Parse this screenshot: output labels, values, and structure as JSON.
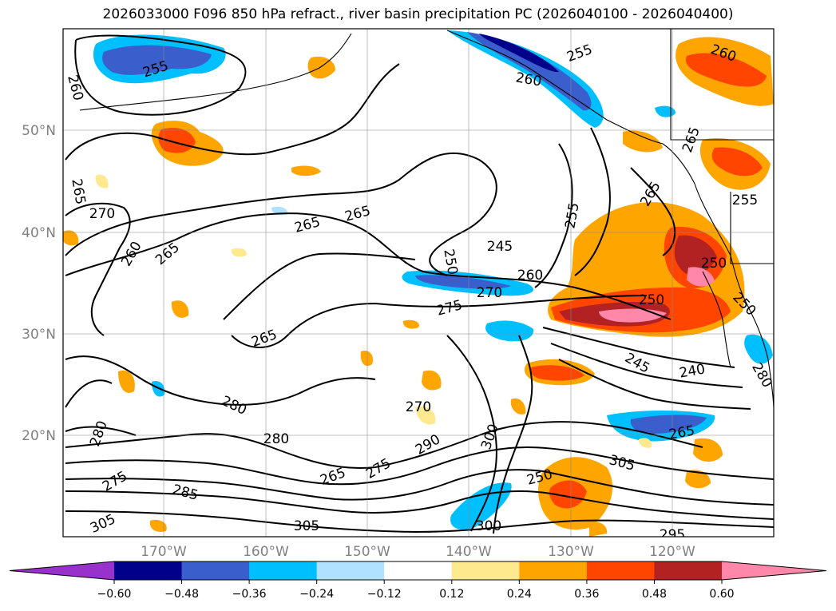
{
  "title": "2026033000 F096 850 hPa refract., river basin precipitation PC (2026040100 - 2026040400)",
  "map": {
    "lat_labels": [
      "50°N",
      "40°N",
      "30°N",
      "20°N"
    ],
    "lon_labels": [
      "170°W",
      "160°W",
      "150°W",
      "140°W",
      "130°W",
      "120°W"
    ]
  },
  "contour_labels": [
    {
      "text": "255"
    },
    {
      "text": "260"
    },
    {
      "text": "255"
    },
    {
      "text": "260"
    },
    {
      "text": "260"
    },
    {
      "text": "265"
    },
    {
      "text": "270"
    },
    {
      "text": "265"
    },
    {
      "text": "265"
    },
    {
      "text": "265"
    },
    {
      "text": "255"
    },
    {
      "text": "255"
    },
    {
      "text": "265"
    },
    {
      "text": "260"
    },
    {
      "text": "265"
    },
    {
      "text": "245"
    },
    {
      "text": "250"
    },
    {
      "text": "260"
    },
    {
      "text": "270"
    },
    {
      "text": "275"
    },
    {
      "text": "250"
    },
    {
      "text": "250"
    },
    {
      "text": "250"
    },
    {
      "text": "265"
    },
    {
      "text": "245"
    },
    {
      "text": "240"
    },
    {
      "text": "280"
    },
    {
      "text": "280"
    },
    {
      "text": "270"
    },
    {
      "text": "280"
    },
    {
      "text": "280"
    },
    {
      "text": "275"
    },
    {
      "text": "285"
    },
    {
      "text": "265"
    },
    {
      "text": "275"
    },
    {
      "text": "290"
    },
    {
      "text": "300"
    },
    {
      "text": "250"
    },
    {
      "text": "265"
    },
    {
      "text": "305"
    },
    {
      "text": "305"
    },
    {
      "text": "305"
    },
    {
      "text": "300"
    },
    {
      "text": "295"
    }
  ],
  "colorbar": {
    "labels": [
      "−0.60",
      "−0.48",
      "−0.36",
      "−0.24",
      "−0.12",
      "0.12",
      "0.24",
      "0.36",
      "0.48",
      "0.60"
    ],
    "colors": [
      "#9932cc",
      "#00008b",
      "#3a5fcd",
      "#00bfff",
      "#b0e2ff",
      "#ffffff",
      "#ffe98f",
      "#ffa500",
      "#ff4500",
      "#b22222",
      "#ff88aa"
    ]
  }
}
